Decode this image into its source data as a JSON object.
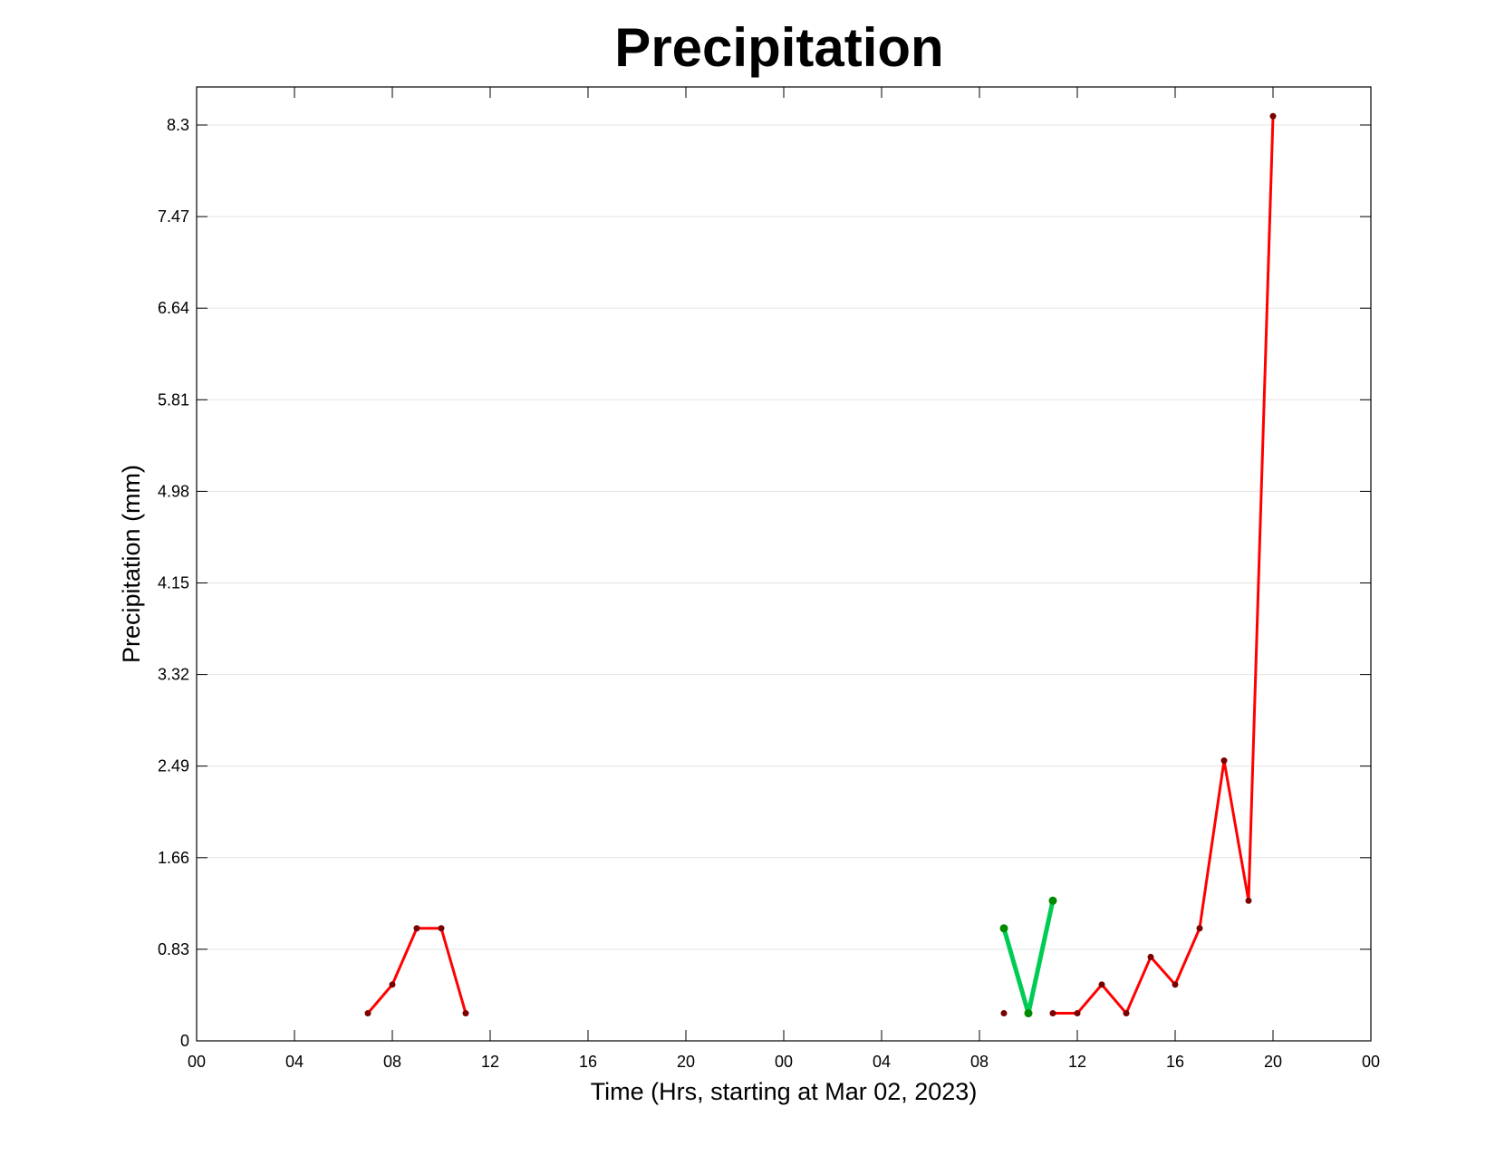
{
  "chart_data": {
    "type": "line",
    "title": "Precipitation",
    "xlabel": "Time (Hrs, starting at Mar 02, 2023)",
    "ylabel": "Precipitation (mm)",
    "x_unit": "hours",
    "xlim": [
      0,
      48
    ],
    "ylim": [
      0,
      8.3
    ],
    "x_tick_values": [
      0,
      4,
      8,
      12,
      16,
      20,
      24,
      28,
      32,
      36,
      40,
      44,
      48
    ],
    "x_tick_labels": [
      "00",
      "04",
      "08",
      "12",
      "16",
      "20",
      "00",
      "04",
      "08",
      "12",
      "16",
      "20",
      "00"
    ],
    "y_tick_values": [
      0,
      0.83,
      1.66,
      2.49,
      3.32,
      4.15,
      4.98,
      5.81,
      6.64,
      7.47,
      8.3
    ],
    "y_tick_labels": [
      "0",
      "0.83",
      "1.66",
      "2.49",
      "3.32",
      "4.15",
      "4.98",
      "5.81",
      "6.64",
      "7.47",
      "8.3"
    ],
    "grid": "horizontal",
    "series": [
      {
        "color": "#ff0000",
        "marker_color": "#7a0000",
        "segments": [
          [
            [
              7,
              0.25
            ],
            [
              8,
              0.51
            ],
            [
              9,
              1.02
            ],
            [
              10,
              1.02
            ],
            [
              11,
              0.25
            ]
          ],
          [
            [
              33,
              0.25
            ]
          ],
          [
            [
              35,
              0.25
            ],
            [
              36,
              0.25
            ],
            [
              37,
              0.51
            ],
            [
              38,
              0.25
            ],
            [
              39,
              0.76
            ],
            [
              40,
              0.51
            ],
            [
              41,
              1.02
            ],
            [
              42,
              2.54
            ],
            [
              43,
              1.27
            ],
            [
              44,
              8.38
            ]
          ]
        ]
      },
      {
        "color": "#00cc55",
        "marker_color": "#008a00",
        "segments": [
          [
            [
              33,
              1.02
            ],
            [
              34,
              0.25
            ],
            [
              35,
              1.27
            ]
          ]
        ]
      }
    ]
  }
}
